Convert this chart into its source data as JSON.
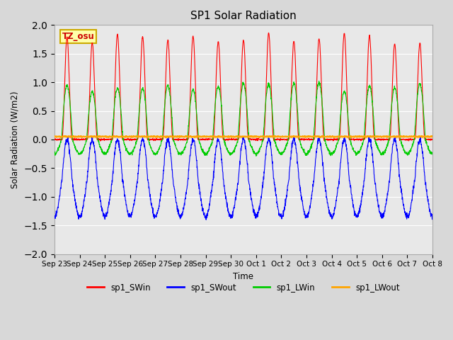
{
  "title": "SP1 Solar Radiation",
  "ylabel": "Solar Radiation (W/m2)",
  "xlabel": "Time",
  "ylim": [
    -2.0,
    2.0
  ],
  "yticks": [
    -2.0,
    -1.5,
    -1.0,
    -0.5,
    0.0,
    0.5,
    1.0,
    1.5,
    2.0
  ],
  "xtick_labels": [
    "Sep 23",
    "Sep 24",
    "Sep 25",
    "Sep 26",
    "Sep 27",
    "Sep 28",
    "Sep 29",
    "Sep 30",
    "Oct 1",
    "Oct 2",
    "Oct 3",
    "Oct 4",
    "Oct 5",
    "Oct 6",
    "Oct 7",
    "Oct 8"
  ],
  "colors": {
    "sp1_SWin": "#ff0000",
    "sp1_SWout": "#0000ff",
    "sp1_LWin": "#00cc00",
    "sp1_LWout": "#ffa500"
  },
  "legend_labels": [
    "sp1_SWin",
    "sp1_SWout",
    "sp1_LWin",
    "sp1_LWout"
  ],
  "annotation_text": "TZ_osu",
  "annotation_facecolor": "#ffffaa",
  "annotation_edgecolor": "#ccaa00",
  "fig_facecolor": "#d8d8d8",
  "ax_facecolor": "#e8e8e8",
  "n_days": 15,
  "n_points_per_day": 144
}
